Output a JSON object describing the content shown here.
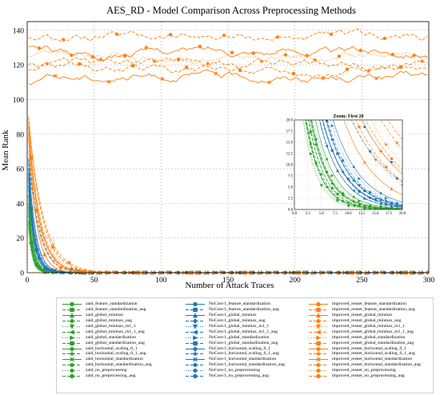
{
  "chart_data": {
    "type": "line",
    "title": "AES_RD - Model Comparison Across Preprocessing Methods",
    "xlabel": "Number of Attack Traces",
    "ylabel": "Mean Rank",
    "xlim": [
      0,
      300
    ],
    "ylim": [
      0,
      145
    ],
    "xticks": [
      0,
      50,
      100,
      150,
      200,
      250,
      300
    ],
    "yticks": [
      0,
      20,
      40,
      60,
      80,
      100,
      120,
      140
    ],
    "grid": true,
    "legend_placement": "bottom",
    "inset": {
      "title": "Zoom: First 20",
      "xlim": [
        0,
        20
      ],
      "ylim": [
        0,
        20
      ],
      "xticks": [
        "0.0",
        "2.5",
        "5.0",
        "7.5",
        "10.0",
        "12.5",
        "15.0",
        "17.5",
        "20.0"
      ],
      "yticks": [
        "0.0",
        "2.5",
        "5.0",
        "7.5",
        "10.0",
        "12.5",
        "15.0",
        "17.5",
        "20.0"
      ]
    },
    "groups": [
      {
        "color": "#2ca02c",
        "final_rank": 0,
        "series": [
          {
            "name": "zaid_feature_standardization",
            "start": 40,
            "decay": 3.2,
            "dash": "",
            "marker": "o"
          },
          {
            "name": "zaid_feature_standardization_aug",
            "start": 35,
            "decay": 3.0,
            "dash": "4,2",
            "marker": "s"
          },
          {
            "name": "zaid_global_minmax",
            "start": 30,
            "decay": 2.8,
            "dash": "",
            "marker": "^"
          },
          {
            "name": "zaid_global_minmax_aug",
            "start": 38,
            "decay": 3.4,
            "dash": "4,2",
            "marker": "D"
          },
          {
            "name": "zaid_global_minmax_m1_1",
            "start": 25,
            "decay": 2.6,
            "dash": "1,2",
            "marker": "v"
          },
          {
            "name": "zaid_global_minmax_m1_1_aug",
            "start": 28,
            "decay": 2.9,
            "dash": "4,2",
            "marker": "<"
          },
          {
            "name": "zaid_global_standardization",
            "start": 42,
            "decay": 3.5,
            "dash": "1,2",
            "marker": ">"
          },
          {
            "name": "zaid_global_standardization_aug",
            "start": 33,
            "decay": 3.1,
            "dash": "4,2",
            "marker": "s"
          },
          {
            "name": "zaid_horizontal_scaling_0_1",
            "start": 36,
            "decay": 3.3,
            "dash": "",
            "marker": "P"
          },
          {
            "name": "zaid_horizontal_scaling_0_1_aug",
            "start": 30,
            "decay": 3.0,
            "dash": "4,2",
            "marker": "*"
          },
          {
            "name": "zaid_horizontal_standardization",
            "start": 45,
            "decay": 3.6,
            "dash": "",
            "marker": "X"
          },
          {
            "name": "zaid_horizontal_standardization_aug",
            "start": 38,
            "decay": 3.2,
            "dash": "4,2",
            "marker": "p"
          },
          {
            "name": "zaid_no_preprocessing",
            "start": 26,
            "decay": 2.7,
            "dash": "1,2",
            "marker": "h"
          },
          {
            "name": "zaid_no_preprocessing_aug",
            "start": 29,
            "decay": 2.9,
            "dash": "4,2",
            "marker": "o"
          }
        ]
      },
      {
        "color": "#1f77b4",
        "final_rank": 0,
        "series": [
          {
            "name": "NoConv1_feature_standardization",
            "start": 60,
            "decay": 4.5,
            "dash": "",
            "marker": "o"
          },
          {
            "name": "NoConv1_feature_standardization_aug",
            "start": 55,
            "decay": 4.2,
            "dash": "4,2",
            "marker": "s"
          },
          {
            "name": "NoConv1_global_minmax",
            "start": 50,
            "decay": 4.0,
            "dash": "",
            "marker": "^"
          },
          {
            "name": "NoConv1_global_minmax_aug",
            "start": 58,
            "decay": 4.8,
            "dash": "4,2",
            "marker": "D"
          },
          {
            "name": "NoConv1_global_minmax_m1_1",
            "start": 52,
            "decay": 4.4,
            "dash": "1,2",
            "marker": "v"
          },
          {
            "name": "NoConv1_global_minmax_m1_1_aug",
            "start": 48,
            "decay": 4.1,
            "dash": "4,2",
            "marker": "<"
          },
          {
            "name": "NoConv1_global_standardization",
            "start": 62,
            "decay": 5.0,
            "dash": "1,2",
            "marker": ">"
          },
          {
            "name": "NoConv1_global_standardization_aug",
            "start": 57,
            "decay": 4.6,
            "dash": "4,2",
            "marker": "s"
          },
          {
            "name": "NoConv1_horizontal_scaling_0_1",
            "start": 54,
            "decay": 4.3,
            "dash": "",
            "marker": "P"
          },
          {
            "name": "NoConv1_horizontal_scaling_0_1_aug",
            "start": 50,
            "decay": 4.5,
            "dash": "4,2",
            "marker": "*"
          },
          {
            "name": "NoConv1_horizontal_standardization",
            "start": 65,
            "decay": 5.2,
            "dash": "",
            "marker": "X"
          },
          {
            "name": "NoConv1_horizontal_standardization_aug",
            "start": 56,
            "decay": 4.7,
            "dash": "4,2",
            "marker": "p"
          },
          {
            "name": "NoConv1_no_preprocessing",
            "start": 70,
            "decay": 9.0,
            "dash": "1,2",
            "marker": "h"
          },
          {
            "name": "NoConv1_no_preprocessing_aug",
            "start": 66,
            "decay": 8.0,
            "dash": "4,2",
            "marker": "o"
          }
        ]
      },
      {
        "color": "#ff7f0e",
        "final_rank": 0,
        "series": [
          {
            "name": "improved_resnet_feature_standardization",
            "start": 85,
            "decay": 8.0,
            "dash": "",
            "marker": "o"
          },
          {
            "name": "improved_resnet_feature_standardization_aug",
            "start": 80,
            "decay": 7.5,
            "dash": "4,2",
            "marker": "s"
          },
          {
            "name": "improved_resnet_global_minmax",
            "start": 78,
            "decay": 6.0,
            "dash": "",
            "marker": "^"
          },
          {
            "name": "improved_resnet_global_minmax_aug",
            "start": 90,
            "decay": 10.0,
            "dash": "4,2",
            "marker": "D"
          },
          {
            "name": "improved_resnet_global_minmax_m1_1",
            "start": 82,
            "decay": 7.0,
            "dash": "1,2",
            "marker": "v"
          },
          {
            "name": "improved_resnet_global_minmax_m1_1_aug",
            "start": 88,
            "decay": 11.0,
            "dash": "4,2",
            "marker": "<"
          },
          {
            "name": "improved_resnet_global_standardization",
            "start": 86,
            "decay": 9.0,
            "dash": "1,2",
            "marker": ">"
          },
          {
            "name": "improved_resnet_global_standardization_aug",
            "start": 84,
            "decay": 8.5,
            "dash": "4,2",
            "marker": "s"
          },
          {
            "name": "improved_resnet_horizontal_scaling_0_1",
            "start": 130,
            "level": 128,
            "dash": "",
            "marker": "P",
            "flat": true
          },
          {
            "name": "improved_resnet_horizontal_scaling_0_1_aug",
            "start": 120,
            "level": 121,
            "dash": "4,2",
            "marker": "*",
            "flat": true
          },
          {
            "name": "improved_resnet_horizontal_standardization",
            "start": 110,
            "level": 113,
            "dash": "",
            "marker": "X",
            "flat": true
          },
          {
            "name": "improved_resnet_horizontal_standardization_aug",
            "start": 135,
            "level": 136,
            "dash": "4,2",
            "marker": "p",
            "flat": true
          },
          {
            "name": "improved_resnet_no_preprocessing",
            "start": 125,
            "level": 124,
            "dash": "1,2",
            "marker": "h",
            "flat": true
          },
          {
            "name": "improved_resnet_no_preprocessing_aug",
            "start": 118,
            "level": 117,
            "dash": "4,2",
            "marker": "o",
            "flat": true
          }
        ]
      }
    ]
  }
}
